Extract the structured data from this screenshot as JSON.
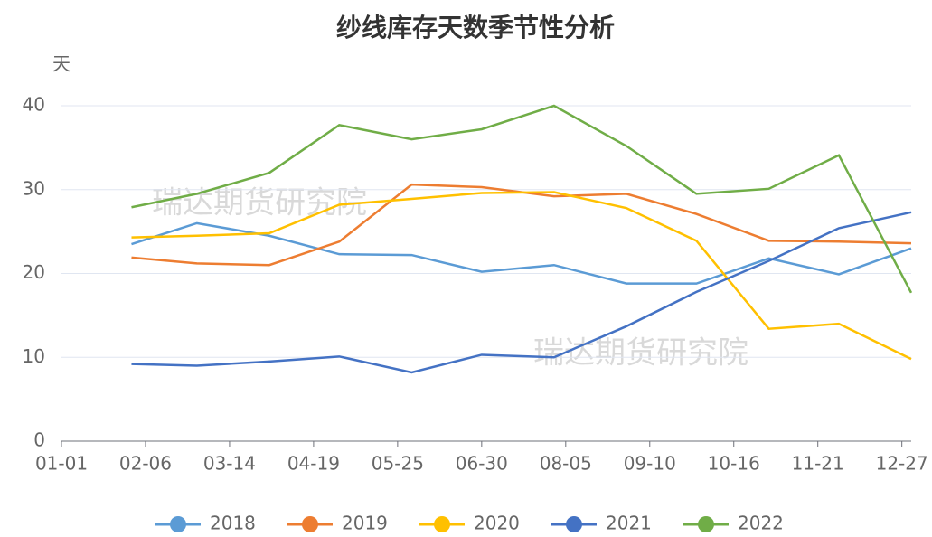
{
  "chart_data": {
    "type": "line",
    "title": "纱线库存天数季节性分析",
    "ylabel": "天",
    "watermarks": [
      "瑞达期货研究院",
      "瑞达期货研究院"
    ],
    "x": [
      30,
      58,
      89,
      119,
      150,
      180,
      211,
      242,
      272,
      303,
      333,
      364
    ],
    "xlim": [
      0,
      364
    ],
    "xticks": [
      {
        "value": 0,
        "label": "01-01"
      },
      {
        "value": 36,
        "label": "02-06"
      },
      {
        "value": 72,
        "label": "03-14"
      },
      {
        "value": 108,
        "label": "04-19"
      },
      {
        "value": 144,
        "label": "05-25"
      },
      {
        "value": 180,
        "label": "06-30"
      },
      {
        "value": 216,
        "label": "08-05"
      },
      {
        "value": 252,
        "label": "09-10"
      },
      {
        "value": 288,
        "label": "10-16"
      },
      {
        "value": 324,
        "label": "11-21"
      },
      {
        "value": 360,
        "label": "12-27"
      }
    ],
    "ylim": [
      0,
      40
    ],
    "yticks": [
      0,
      10,
      20,
      30,
      40
    ],
    "grid": true,
    "legend": "bottom",
    "series": [
      {
        "name": "2018",
        "color": "#5b9bd5",
        "values": [
          23.5,
          26,
          24.5,
          22.3,
          22.2,
          20.2,
          21,
          18.8,
          18.8,
          21.8,
          19.9,
          23
        ]
      },
      {
        "name": "2019",
        "color": "#ed7d31",
        "values": [
          21.9,
          21.2,
          21,
          23.8,
          30.6,
          30.3,
          29.2,
          29.5,
          27.1,
          23.9,
          23.8,
          23.6
        ]
      },
      {
        "name": "2020",
        "color": "#ffc000",
        "values": [
          24.3,
          24.5,
          24.8,
          28.2,
          28.9,
          29.6,
          29.7,
          27.8,
          23.9,
          13.4,
          14,
          9.8
        ]
      },
      {
        "name": "2021",
        "color": "#4472c4",
        "values": [
          9.2,
          9,
          9.5,
          10.1,
          8.2,
          10.3,
          10,
          13.7,
          17.8,
          21.5,
          25.4,
          27.3
        ]
      },
      {
        "name": "2022",
        "color": "#70ad47",
        "values": [
          27.9,
          29.5,
          32,
          37.7,
          36,
          37.2,
          40,
          35.2,
          29.5,
          30.1,
          34.1,
          17.7
        ]
      }
    ]
  }
}
